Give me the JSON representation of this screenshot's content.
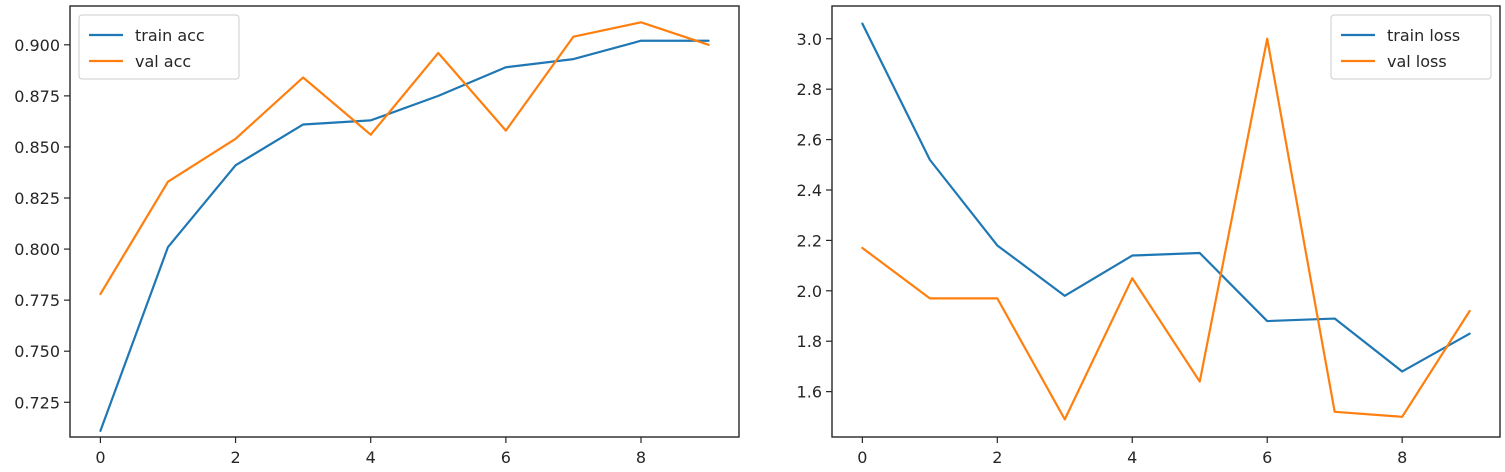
{
  "chart_data": [
    {
      "type": "line",
      "title": "",
      "xlabel": "",
      "ylabel": "",
      "x": [
        0,
        1,
        2,
        3,
        4,
        5,
        6,
        7,
        8,
        9
      ],
      "xticks": [
        "0",
        "2",
        "4",
        "6",
        "8"
      ],
      "yticks": [
        "0.725",
        "0.750",
        "0.775",
        "0.800",
        "0.825",
        "0.850",
        "0.875",
        "0.900"
      ],
      "xlim": [
        -0.45,
        9.45
      ],
      "ylim": [
        0.708,
        0.919
      ],
      "legend_position": "upper-left",
      "grid": false,
      "series": [
        {
          "name": "train acc",
          "color": "#1f77b4",
          "values": [
            0.711,
            0.801,
            0.841,
            0.861,
            0.863,
            0.875,
            0.889,
            0.893,
            0.902,
            0.902
          ]
        },
        {
          "name": "val acc",
          "color": "#ff7f0e",
          "values": [
            0.778,
            0.833,
            0.854,
            0.884,
            0.856,
            0.896,
            0.858,
            0.904,
            0.911,
            0.9
          ]
        }
      ]
    },
    {
      "type": "line",
      "title": "",
      "xlabel": "",
      "ylabel": "",
      "x": [
        0,
        1,
        2,
        3,
        4,
        5,
        6,
        7,
        8,
        9
      ],
      "xticks": [
        "0",
        "2",
        "4",
        "6",
        "8"
      ],
      "yticks": [
        "1.6",
        "1.8",
        "2.0",
        "2.2",
        "2.4",
        "2.6",
        "2.8",
        "3.0"
      ],
      "xlim": [
        -0.45,
        9.45
      ],
      "ylim": [
        1.42,
        3.13
      ],
      "legend_position": "upper-right",
      "grid": false,
      "series": [
        {
          "name": "train loss",
          "color": "#1f77b4",
          "values": [
            3.06,
            2.52,
            2.18,
            1.98,
            2.14,
            2.15,
            1.88,
            1.89,
            1.68,
            1.83
          ]
        },
        {
          "name": "val loss",
          "color": "#ff7f0e",
          "values": [
            2.17,
            1.97,
            1.97,
            1.49,
            2.05,
            1.64,
            3.0,
            1.52,
            1.5,
            1.92
          ]
        }
      ]
    }
  ]
}
